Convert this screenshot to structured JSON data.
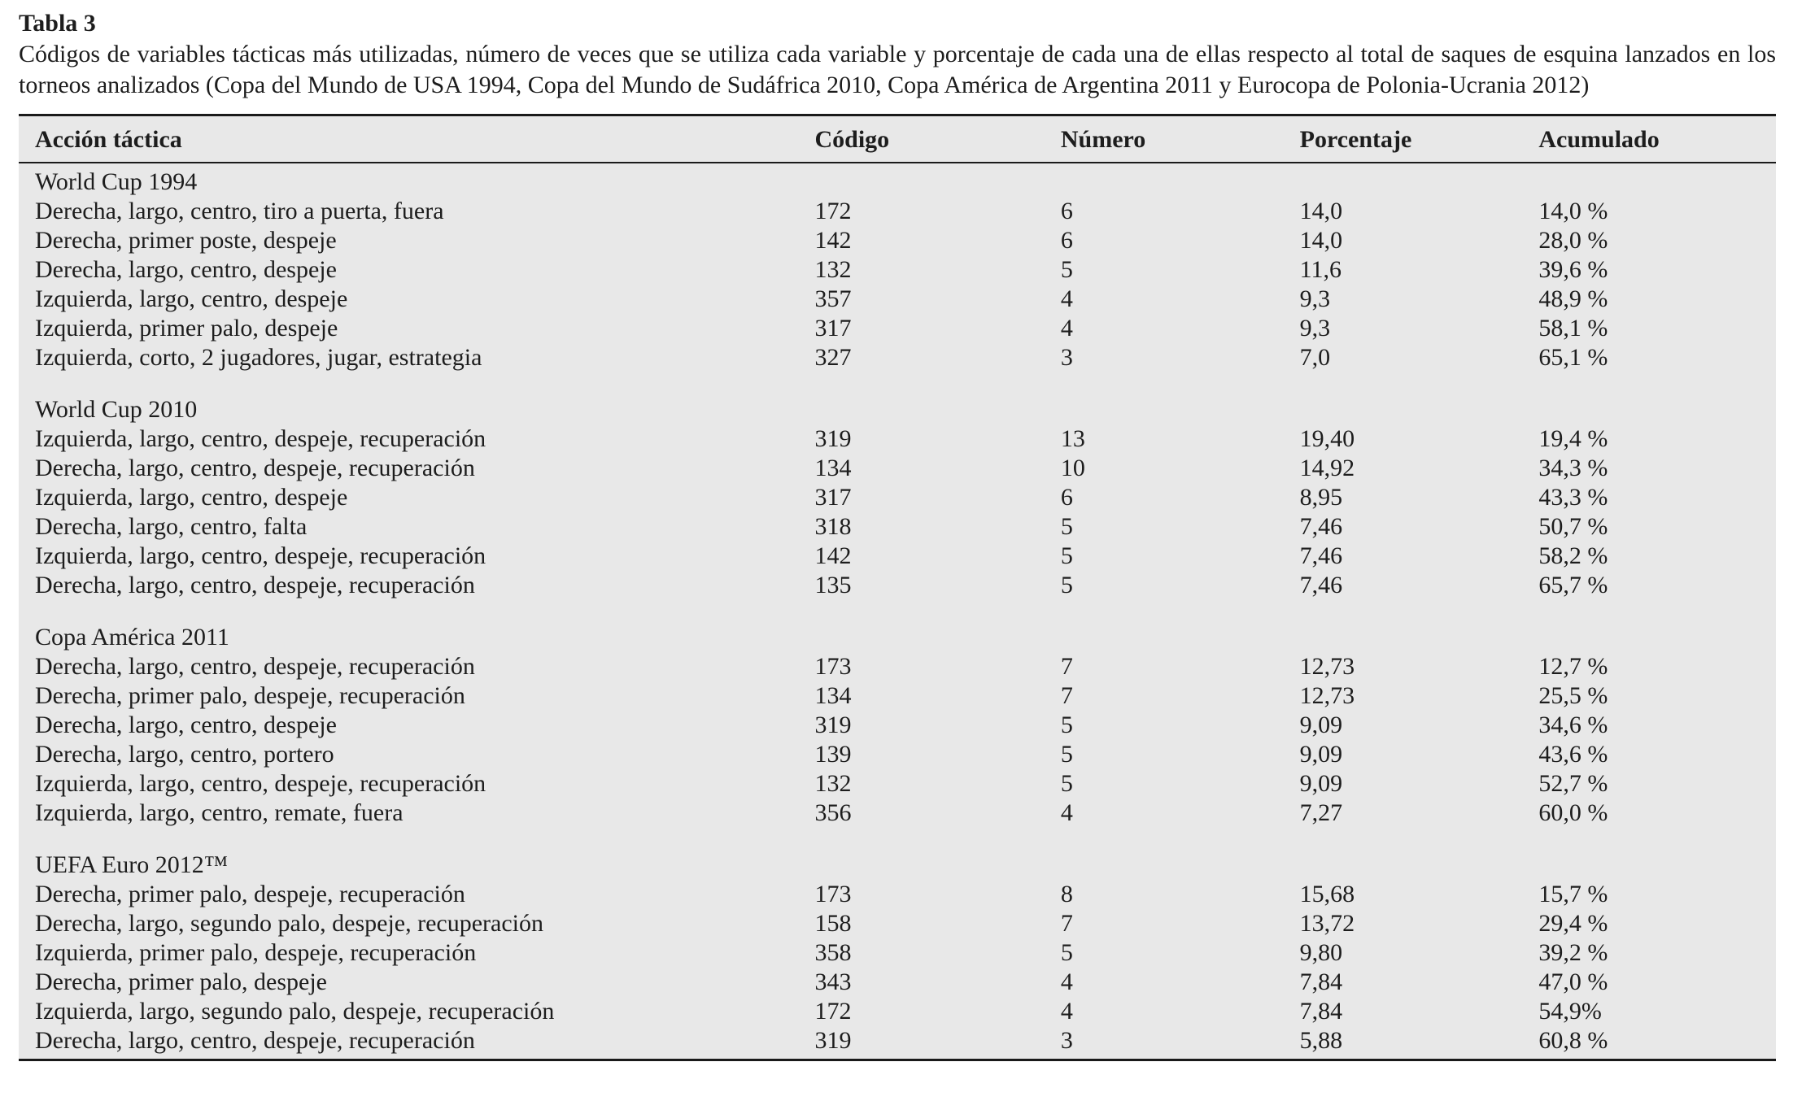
{
  "table": {
    "label": "Tabla 3",
    "caption": "Códigos de variables tácticas más utilizadas, número de veces que se utiliza cada variable y porcentaje de cada una de ellas respecto al total de saques de esquina lanzados en los torneos analizados (Copa del Mundo de USA 1994, Copa del Mundo de Sudáfrica 2010, Copa América de Argentina 2011 y Eurocopa de Polonia-Ucrania 2012)",
    "columns": [
      "Acción táctica",
      "Código",
      "Número",
      "Porcentaje",
      "Acumulado"
    ],
    "sections": [
      {
        "title": "World Cup 1994",
        "rows": [
          {
            "accion": "Derecha, largo, centro, tiro a puerta, fuera",
            "codigo": "172",
            "numero": "6",
            "porcentaje": "14,0",
            "acumulado": "14,0 %"
          },
          {
            "accion": "Derecha, primer poste, despeje",
            "codigo": "142",
            "numero": "6",
            "porcentaje": "14,0",
            "acumulado": "28,0 %"
          },
          {
            "accion": "Derecha, largo, centro, despeje",
            "codigo": "132",
            "numero": "5",
            "porcentaje": "11,6",
            "acumulado": "39,6 %"
          },
          {
            "accion": "Izquierda, largo, centro, despeje",
            "codigo": "357",
            "numero": "4",
            "porcentaje": "9,3",
            "acumulado": "48,9 %"
          },
          {
            "accion": "Izquierda, primer palo, despeje",
            "codigo": "317",
            "numero": "4",
            "porcentaje": "9,3",
            "acumulado": "58,1 %"
          },
          {
            "accion": "Izquierda, corto, 2 jugadores, jugar, estrategia",
            "codigo": "327",
            "numero": "3",
            "porcentaje": "7,0",
            "acumulado": "65,1 %"
          }
        ]
      },
      {
        "title": "World Cup 2010",
        "rows": [
          {
            "accion": "Izquierda, largo, centro, despeje, recuperación",
            "codigo": "319",
            "numero": "13",
            "porcentaje": "19,40",
            "acumulado": "19,4 %"
          },
          {
            "accion": "Derecha, largo, centro, despeje, recuperación",
            "codigo": "134",
            "numero": "10",
            "porcentaje": "14,92",
            "acumulado": "34,3 %"
          },
          {
            "accion": "Izquierda, largo, centro, despeje",
            "codigo": "317",
            "numero": "6",
            "porcentaje": "8,95",
            "acumulado": "43,3 %"
          },
          {
            "accion": "Derecha, largo, centro, falta",
            "codigo": "318",
            "numero": "5",
            "porcentaje": "7,46",
            "acumulado": "50,7 %"
          },
          {
            "accion": "Izquierda, largo, centro, despeje, recuperación",
            "codigo": "142",
            "numero": "5",
            "porcentaje": "7,46",
            "acumulado": "58,2 %"
          },
          {
            "accion": "Derecha, largo, centro, despeje, recuperación",
            "codigo": "135",
            "numero": "5",
            "porcentaje": "7,46",
            "acumulado": "65,7 %"
          }
        ]
      },
      {
        "title": "Copa América 2011",
        "rows": [
          {
            "accion": "Derecha, largo, centro, despeje, recuperación",
            "codigo": "173",
            "numero": "7",
            "porcentaje": "12,73",
            "acumulado": "12,7 %"
          },
          {
            "accion": "Derecha, primer palo, despeje, recuperación",
            "codigo": "134",
            "numero": "7",
            "porcentaje": "12,73",
            "acumulado": "25,5 %"
          },
          {
            "accion": "Derecha, largo, centro, despeje",
            "codigo": "319",
            "numero": "5",
            "porcentaje": "9,09",
            "acumulado": "34,6 %"
          },
          {
            "accion": "Derecha, largo, centro, portero",
            "codigo": "139",
            "numero": "5",
            "porcentaje": "9,09",
            "acumulado": "43,6 %"
          },
          {
            "accion": "Izquierda, largo, centro, despeje, recuperación",
            "codigo": "132",
            "numero": "5",
            "porcentaje": "9,09",
            "acumulado": "52,7 %"
          },
          {
            "accion": "Izquierda, largo, centro, remate, fuera",
            "codigo": "356",
            "numero": "4",
            "porcentaje": "7,27",
            "acumulado": "60,0 %"
          }
        ]
      },
      {
        "title": "UEFA Euro 2012™",
        "rows": [
          {
            "accion": "Derecha, primer palo, despeje, recuperación",
            "codigo": "173",
            "numero": "8",
            "porcentaje": "15,68",
            "acumulado": "15,7 %"
          },
          {
            "accion": "Derecha, largo, segundo palo, despeje, recuperación",
            "codigo": "158",
            "numero": "7",
            "porcentaje": "13,72",
            "acumulado": "29,4 %"
          },
          {
            "accion": "Izquierda, primer palo, despeje, recuperación",
            "codigo": "358",
            "numero": "5",
            "porcentaje": "9,80",
            "acumulado": "39,2 %"
          },
          {
            "accion": "Derecha, primer palo, despeje",
            "codigo": "343",
            "numero": "4",
            "porcentaje": "7,84",
            "acumulado": "47,0 %"
          },
          {
            "accion": "Izquierda, largo, segundo palo, despeje, recuperación",
            "codigo": "172",
            "numero": "4",
            "porcentaje": "7,84",
            "acumulado": "54,9%"
          },
          {
            "accion": "Derecha, largo, centro, despeje, recuperación",
            "codigo": "319",
            "numero": "3",
            "porcentaje": "5,88",
            "acumulado": "60,8 %"
          }
        ]
      }
    ]
  },
  "colors": {
    "table_background": "#e8e8e8",
    "rule": "#1a1a1a",
    "text": "#1d1d1d",
    "page_background": "#ffffff"
  }
}
